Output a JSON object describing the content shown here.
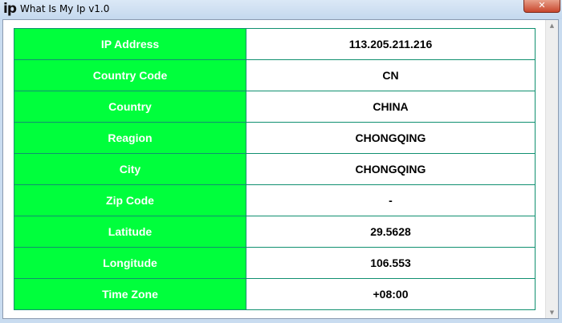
{
  "window": {
    "title": "What Is My Ip v1.0",
    "icon": "ip",
    "close_label": "✕"
  },
  "rows": [
    {
      "label": "IP Address",
      "value": "113.205.211.216"
    },
    {
      "label": "Country Code",
      "value": "CN"
    },
    {
      "label": "Country",
      "value": "CHINA"
    },
    {
      "label": "Reagion",
      "value": "CHONGQING"
    },
    {
      "label": "City",
      "value": "CHONGQING"
    },
    {
      "label": "Zip Code",
      "value": "-"
    },
    {
      "label": "Latitude",
      "value": "29.5628"
    },
    {
      "label": "Longitude",
      "value": "106.553"
    },
    {
      "label": "Time Zone",
      "value": "+08:00"
    }
  ],
  "colors": {
    "label_bg": "#00ff3c",
    "border": "#109070"
  }
}
